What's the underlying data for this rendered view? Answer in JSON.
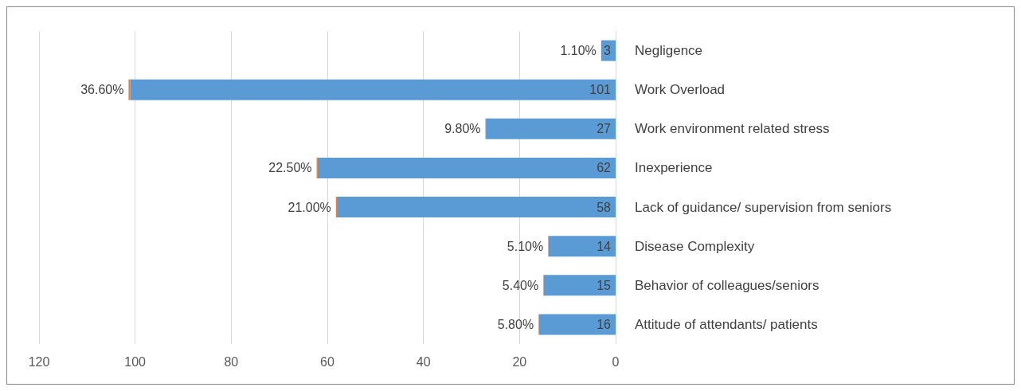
{
  "chart_data": {
    "type": "bar",
    "orientation": "horizontal",
    "stacked": true,
    "categories": [
      "Negligence",
      "Work Overload",
      "Work environment related stress",
      "Inexperience",
      "Lack of guidance/ supervision from seniors",
      "Disease Complexity",
      "Behavior of colleagues/seniors",
      "Attitude of attendants/ patients"
    ],
    "series": [
      {
        "color": "#5b9bd5",
        "values": [
          3,
          101,
          27,
          62,
          58,
          14,
          15,
          16
        ],
        "value_labels": [
          "3",
          "101",
          "27",
          "62",
          "58",
          "14",
          "15",
          "16"
        ]
      },
      {
        "color": "#ed7d31",
        "values": [
          0.011,
          0.366,
          0.098,
          0.225,
          0.21,
          0.051,
          0.054,
          0.058
        ],
        "value_labels": [
          "1.10%",
          "36.60%",
          "9.80%",
          "22.50%",
          "21.00%",
          "5.10%",
          "5.40%",
          "5.80%"
        ]
      }
    ],
    "xlim": [
      120,
      0
    ],
    "xticks": [
      0,
      20,
      40,
      60,
      80,
      100,
      120
    ],
    "grid": "x"
  }
}
